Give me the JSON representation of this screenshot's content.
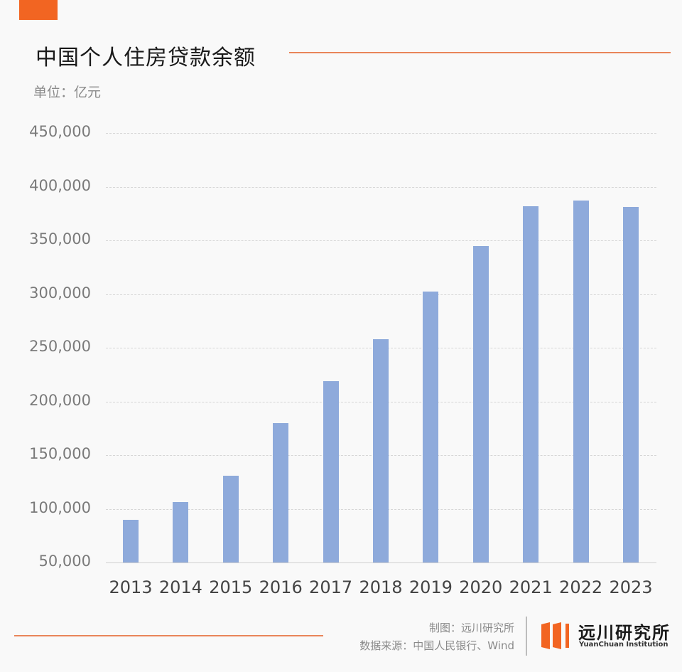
{
  "header": {
    "title": "中国个人住房贷款余额",
    "unit": "单位：亿元",
    "accent_color": "#f26522"
  },
  "chart_data": {
    "type": "bar",
    "title": "中国个人住房贷款余额",
    "subtitle": "单位：亿元",
    "xlabel": "",
    "ylabel": "亿元",
    "categories": [
      "2013",
      "2014",
      "2015",
      "2016",
      "2017",
      "2018",
      "2019",
      "2020",
      "2021",
      "2022",
      "2023"
    ],
    "values": [
      90000,
      106000,
      131000,
      180000,
      219000,
      258000,
      302000,
      345000,
      382000,
      387000,
      381000
    ],
    "ylim": [
      50000,
      450000
    ],
    "yticks": [
      "50,000",
      "100,000",
      "150,000",
      "200,000",
      "250,000",
      "300,000",
      "350,000",
      "400,000",
      "450,000"
    ],
    "grid": true,
    "legend": null,
    "bar_color": "#8eaadb"
  },
  "footer": {
    "made_by": "制图：远川研究所",
    "source": "数据来源：中国人民银行、Wind",
    "logo_cn": "远川研究所",
    "logo_en": "YuanChuan Institution"
  }
}
